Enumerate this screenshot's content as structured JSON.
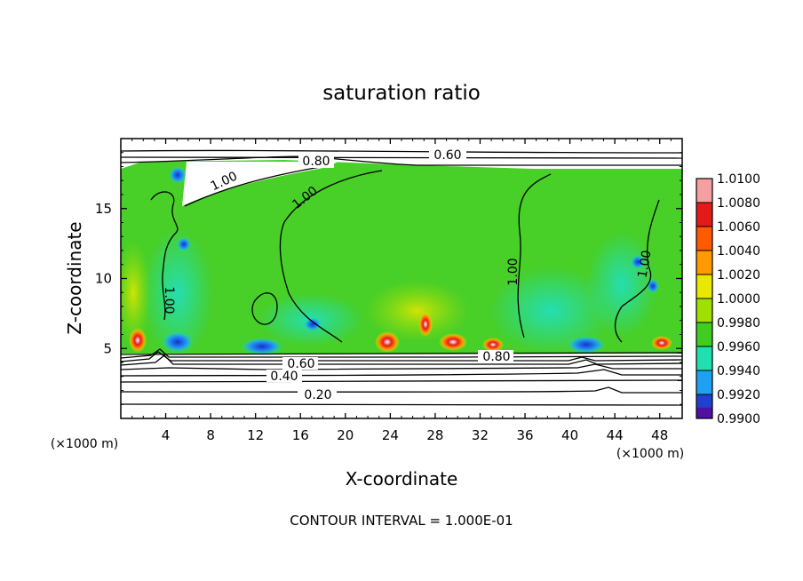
{
  "chart_data": {
    "type": "heatmap",
    "title": "saturation ratio",
    "xlabel": "X-coordinate",
    "ylabel": "Z-coordinate",
    "x_unit_label": "(×1000 m)",
    "y_unit_label": "(×1000 m)",
    "xlim": [
      0,
      50
    ],
    "ylim": [
      0,
      20
    ],
    "x_ticks": [
      4,
      8,
      12,
      16,
      20,
      24,
      28,
      32,
      36,
      40,
      44,
      48
    ],
    "y_ticks": [
      5,
      10,
      15
    ],
    "footer": "CONTOUR INTERVAL = 1.000E-01",
    "colorbar": {
      "levels": [
        "1.0100",
        "1.0080",
        "1.0060",
        "1.0040",
        "1.0020",
        "1.0000",
        "0.9980",
        "0.9960",
        "0.9940",
        "0.9920",
        "0.9900"
      ],
      "colors": [
        "#f4a0a0",
        "#e41a1a",
        "#ff5a00",
        "#ff9a00",
        "#e8e800",
        "#a0e000",
        "#40cc20",
        "#20e0b0",
        "#20a0f0",
        "#2040d0",
        "#5010a0"
      ]
    },
    "contour_labels": [
      {
        "text": "0.60",
        "x": 23.2,
        "y": 18.9
      },
      {
        "text": "0.80",
        "x": 13.5,
        "y": 18.4
      },
      {
        "text": "1.00",
        "x": 7.2,
        "y": 16.5
      },
      {
        "text": "1.00",
        "x": 13.5,
        "y": 15.5
      },
      {
        "text": "1.00",
        "x": 28.0,
        "y": 10.5
      },
      {
        "text": "1.00",
        "x": 3.4,
        "y": 8.7
      },
      {
        "text": "1.00",
        "x": 45.8,
        "y": 10.8
      },
      {
        "text": "0.60",
        "x": 16.2,
        "y": 4.1
      },
      {
        "text": "0.80",
        "x": 33.1,
        "y": 4.6
      },
      {
        "text": "0.40",
        "x": 13.2,
        "y": 3.1
      },
      {
        "text": "0.20",
        "x": 17.2,
        "y": 1.7
      }
    ]
  }
}
